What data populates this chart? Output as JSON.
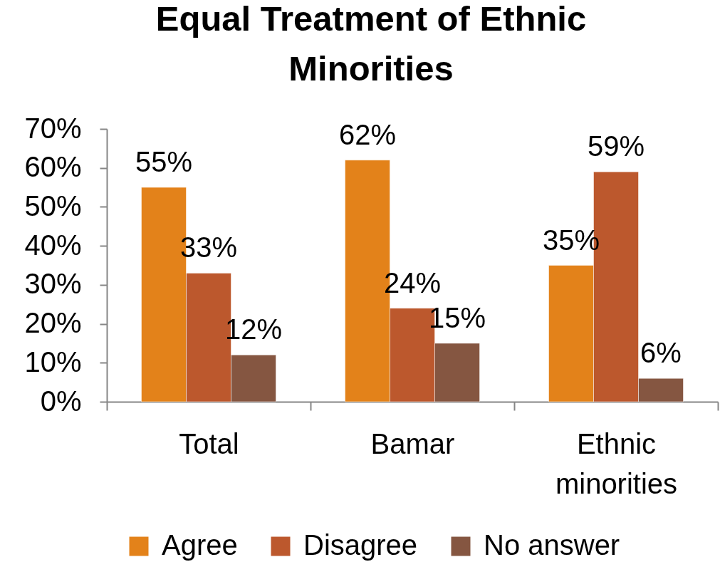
{
  "chart_data": {
    "type": "bar",
    "title": "Equal Treatment of Ethnic Minorities",
    "categories": [
      "Total",
      "Bamar",
      "Ethnic minorities"
    ],
    "series": [
      {
        "name": "Agree",
        "color": "#e3821a",
        "values": [
          55,
          62,
          35
        ],
        "value_labels": [
          "55%",
          "62%",
          "35%"
        ]
      },
      {
        "name": "Disagree",
        "color": "#bc582d",
        "values": [
          33,
          24,
          59
        ],
        "value_labels": [
          "33%",
          "24%",
          "59%"
        ]
      },
      {
        "name": "No answer",
        "color": "#855641",
        "values": [
          12,
          15,
          6
        ],
        "value_labels": [
          "12%",
          "15%",
          "6%"
        ]
      }
    ],
    "ylim": [
      0,
      70
    ],
    "yticks": [
      {
        "value": 0,
        "label": "0%"
      },
      {
        "value": 10,
        "label": "10%"
      },
      {
        "value": 20,
        "label": "20%"
      },
      {
        "value": 30,
        "label": "30%"
      },
      {
        "value": 40,
        "label": "40%"
      },
      {
        "value": 50,
        "label": "50%"
      },
      {
        "value": 60,
        "label": "60%"
      },
      {
        "value": 70,
        "label": "70%"
      }
    ],
    "grid": false,
    "legend": "bottom"
  }
}
